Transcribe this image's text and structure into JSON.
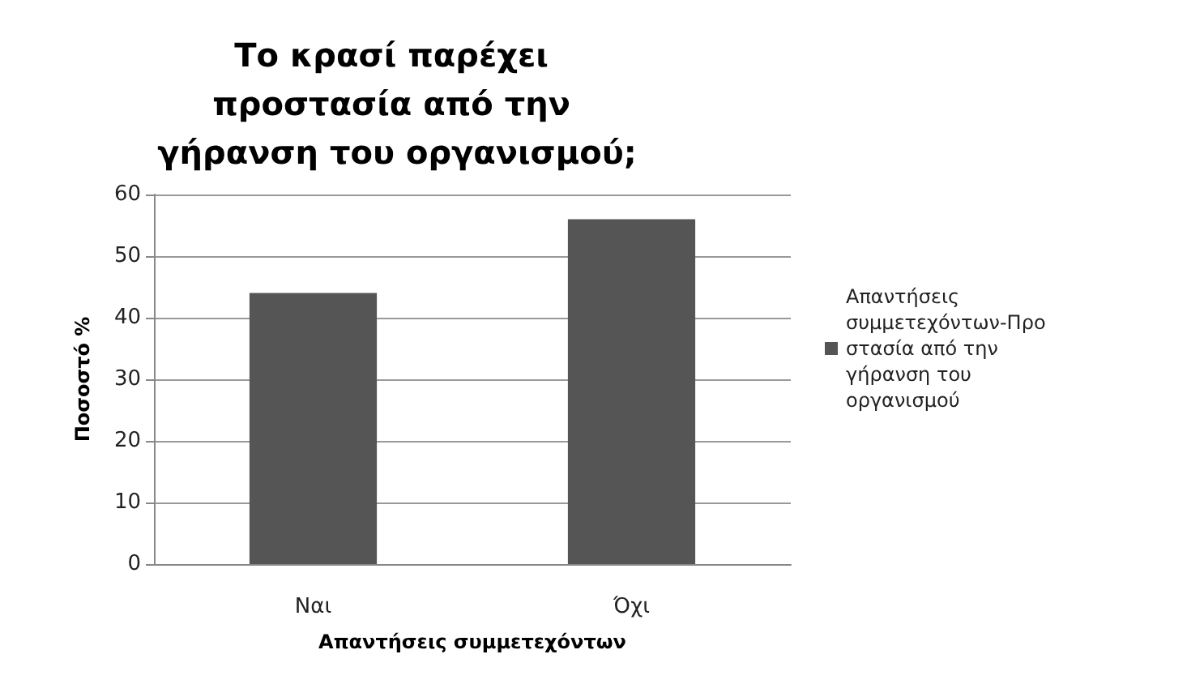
{
  "chart_data": {
    "type": "bar",
    "title": "Το κρασί παρέχει προστασία από την γήρανση του οργανισμού;",
    "xlabel": "Απαντήσεις συμμετεχόντων",
    "ylabel": "Ποσοστό %",
    "categories": [
      "Ναι",
      "Όχι"
    ],
    "series": [
      {
        "name": "Απαντήσεις συμμετεχόντων-Προστασία από την γήρανση του οργανισμού",
        "color": "#555555",
        "values": [
          44,
          56
        ]
      }
    ],
    "ylim": [
      0,
      60
    ],
    "yticks": [
      0,
      10,
      20,
      30,
      40,
      50,
      60
    ],
    "grid": "y",
    "legend": "right"
  }
}
